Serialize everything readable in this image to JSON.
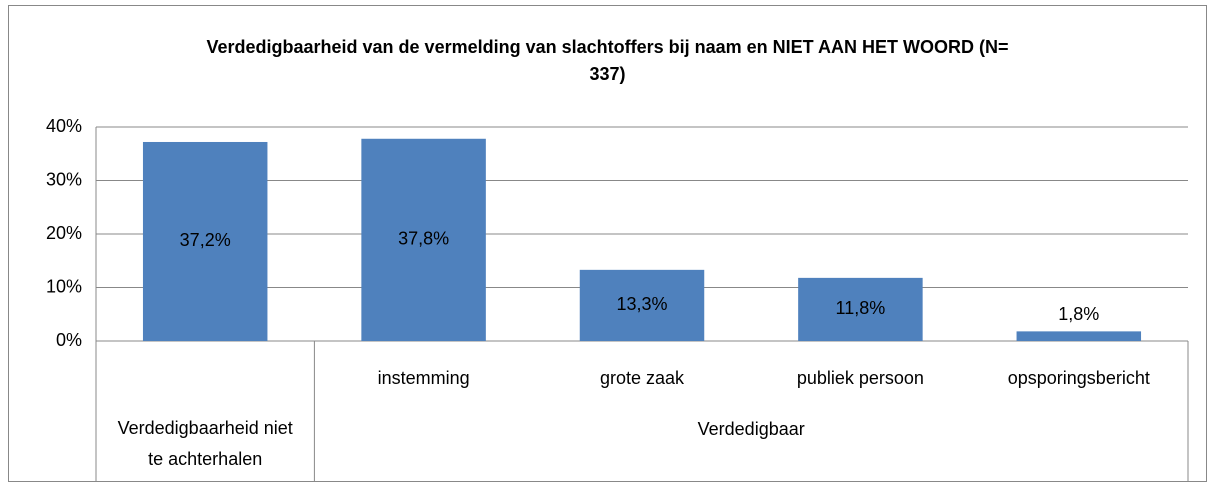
{
  "chart_data": {
    "type": "bar",
    "title": "Verdedigbaarheid van de vermelding van slachtoffers bij naam en NIET AAN HET WOORD (N= 337)",
    "groups": [
      {
        "categories": [
          "Verdedigbaarheid niet te achterhalen"
        ],
        "values": [
          37.2
        ],
        "value_labels": [
          "37,2%"
        ]
      },
      {
        "name": "Verdedigbaar",
        "categories": [
          "instemming",
          "grote zaak",
          "publiek persoon",
          "opsporingsbericht"
        ],
        "values": [
          37.8,
          13.3,
          11.8,
          1.8
        ],
        "value_labels": [
          "37,8%",
          "13,3%",
          "11,8%",
          "1,8%"
        ]
      }
    ],
    "color": "#4f81bd",
    "ylim": [
      0,
      40
    ],
    "yticks": [
      {
        "value": 0,
        "label": "0%"
      },
      {
        "value": 10,
        "label": "10%"
      },
      {
        "value": 20,
        "label": "20%"
      },
      {
        "value": 30,
        "label": "30%"
      },
      {
        "value": 40,
        "label": "40%"
      }
    ],
    "grid": true
  }
}
